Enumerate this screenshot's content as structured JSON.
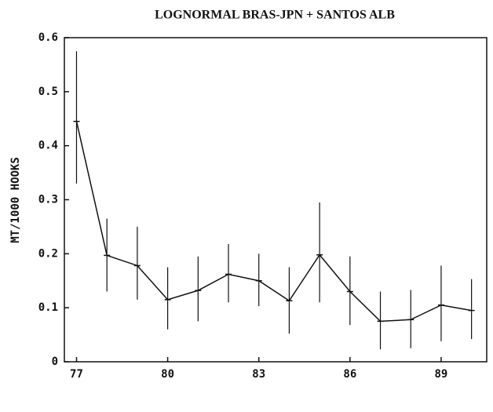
{
  "chart_data": {
    "type": "line",
    "title": "LOGNORMAL BRAS-JPN + SANTOS  ALB",
    "y_label": "MT/1000 HOOKS",
    "x": [
      77,
      78,
      79,
      80,
      81,
      82,
      83,
      84,
      85,
      86,
      87,
      88,
      89,
      90
    ],
    "series": [
      {
        "color": "#111111",
        "values": [
          0.445,
          0.197,
          0.178,
          0.115,
          0.132,
          0.162,
          0.15,
          0.113,
          0.198,
          0.13,
          0.075,
          0.078,
          0.105,
          0.095
        ],
        "lower": [
          0.33,
          0.13,
          0.115,
          0.06,
          0.075,
          0.11,
          0.103,
          0.052,
          0.11,
          0.068,
          0.023,
          0.025,
          0.038,
          0.042
        ],
        "upper": [
          0.575,
          0.265,
          0.25,
          0.175,
          0.195,
          0.218,
          0.2,
          0.175,
          0.295,
          0.195,
          0.13,
          0.133,
          0.178,
          0.153
        ]
      }
    ],
    "xlim": [
      76.6,
      90.5
    ],
    "xticks": [
      77,
      80,
      83,
      86,
      89
    ],
    "ylim": [
      0,
      0.6
    ],
    "yticks": [
      0,
      0.1,
      0.2,
      0.3,
      0.4,
      0.5,
      0.6
    ]
  }
}
